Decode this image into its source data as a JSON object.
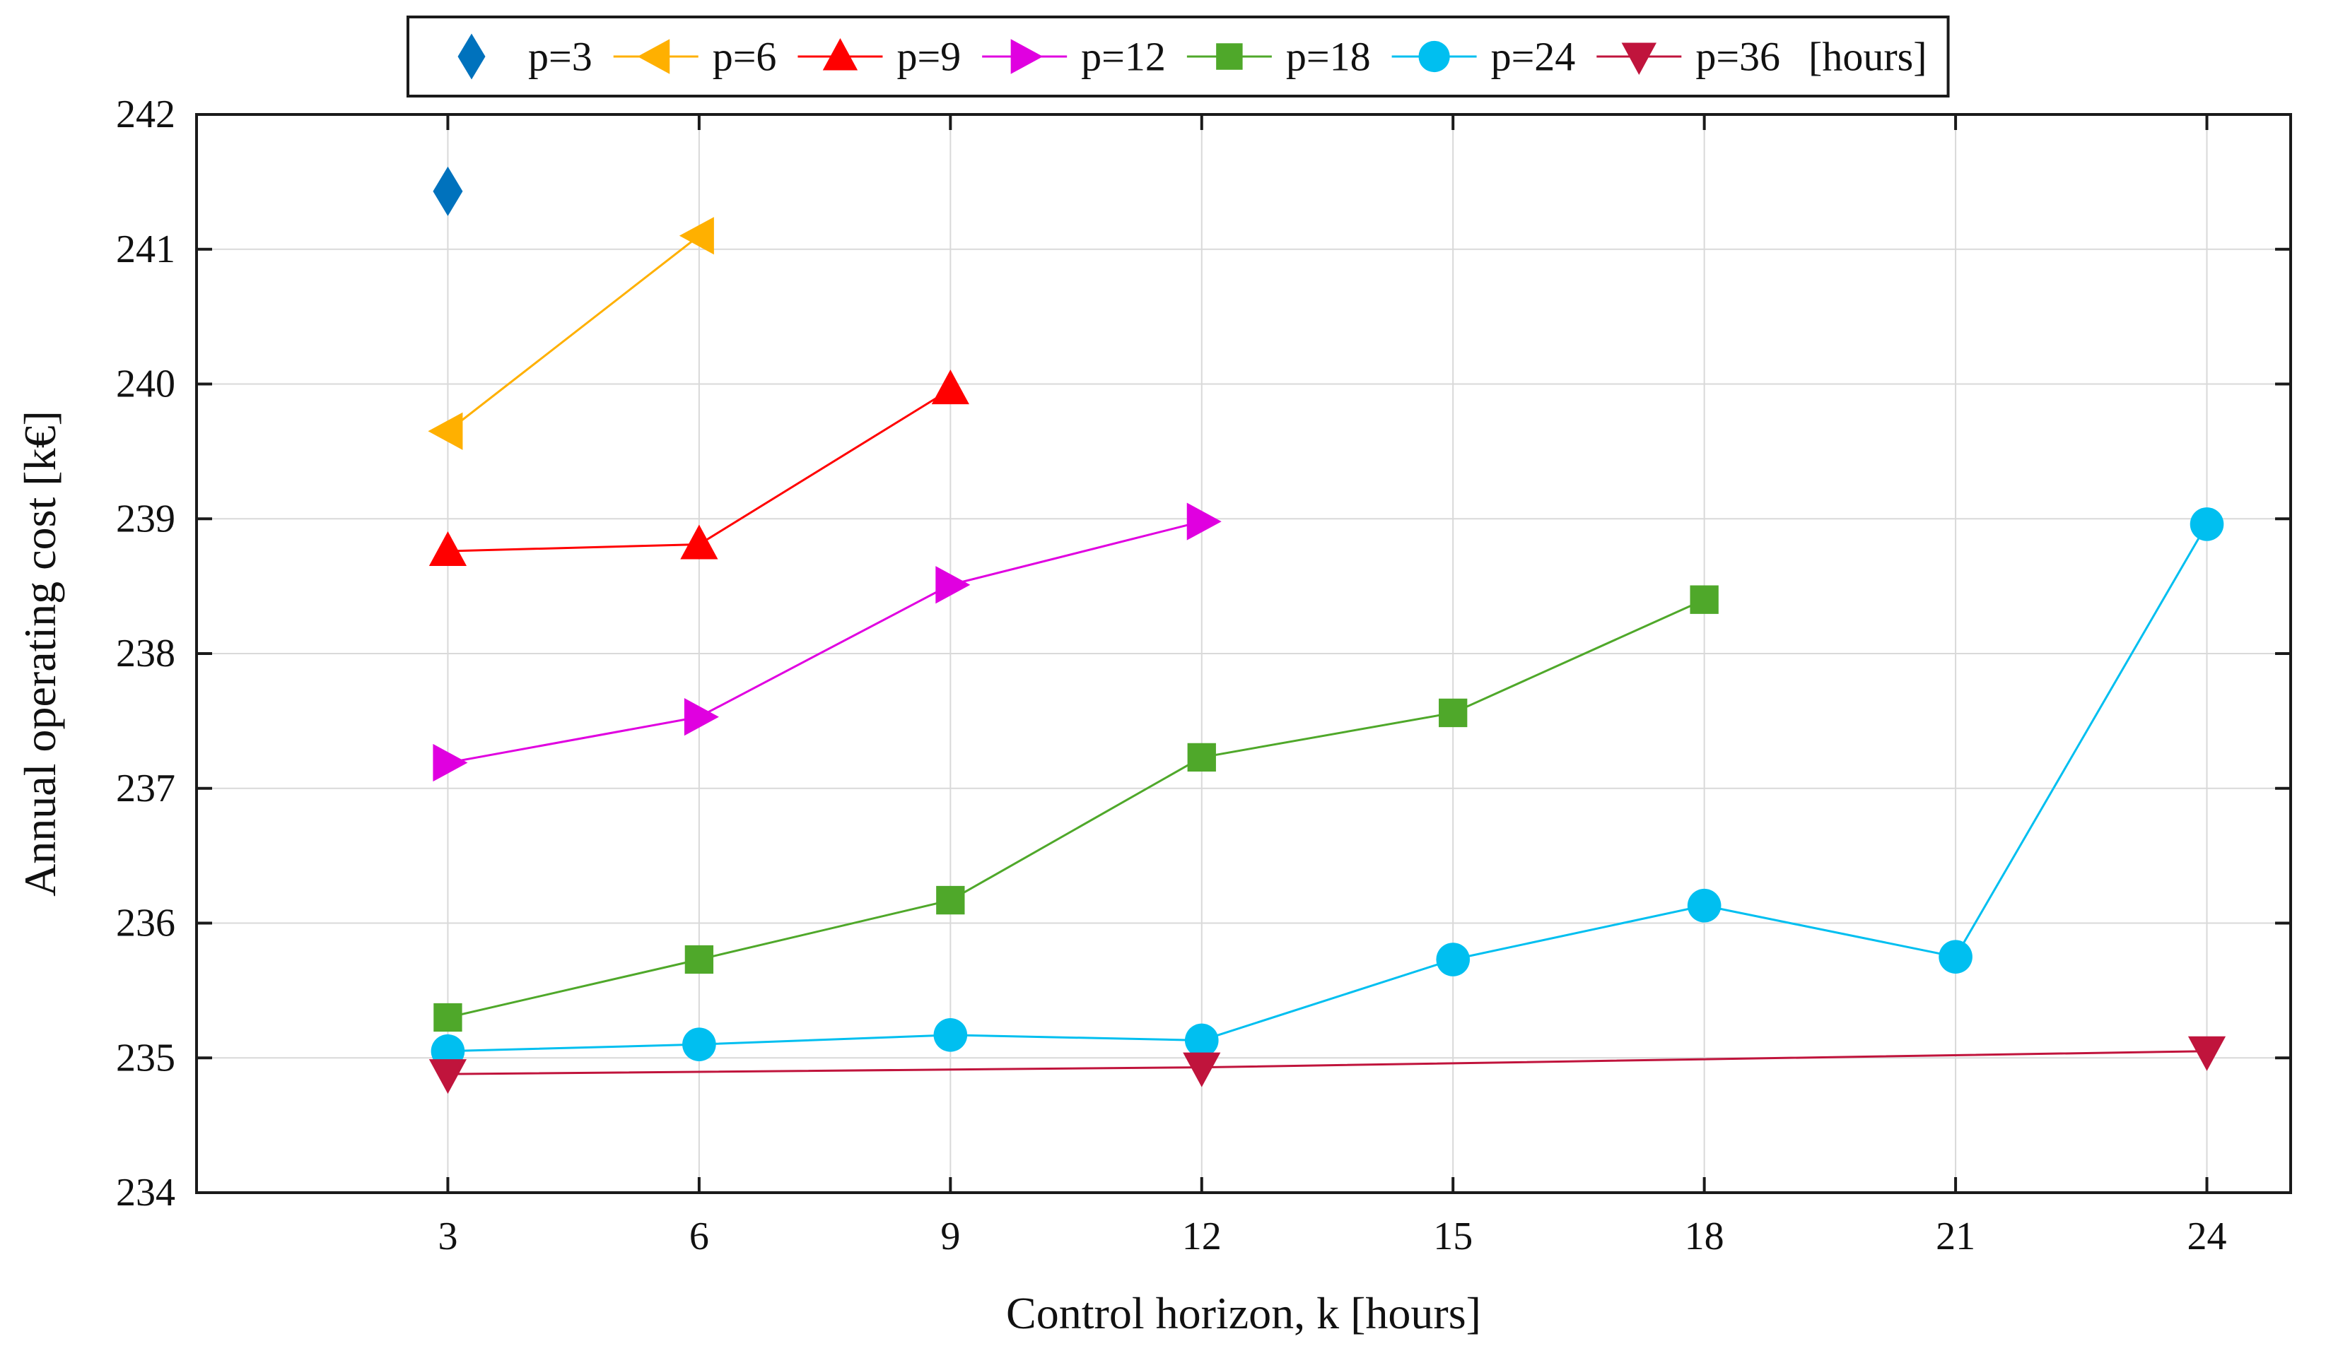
{
  "chart_data": {
    "type": "line",
    "title": "",
    "xlabel": "Control horizon, k [hours]",
    "ylabel": "Annual operating cost [k€]",
    "xlim": [
      0,
      25
    ],
    "ylim": [
      234,
      242
    ],
    "xticks": [
      3,
      6,
      9,
      12,
      15,
      18,
      21,
      24
    ],
    "yticks": [
      234,
      235,
      236,
      237,
      238,
      239,
      240,
      241,
      242
    ],
    "grid": true,
    "legend_position": "top",
    "legend_unit": "[hours]",
    "series": [
      {
        "name": "p=3",
        "color": "#0072BD",
        "marker": "diamond",
        "x": [
          3
        ],
        "y": [
          241.43
        ]
      },
      {
        "name": "p=6",
        "color": "#FFB000",
        "marker": "triangle-left",
        "x": [
          3,
          6
        ],
        "y": [
          239.65,
          241.1
        ]
      },
      {
        "name": "p=9",
        "color": "#FF0000",
        "marker": "triangle-up",
        "x": [
          3,
          6,
          9
        ],
        "y": [
          238.76,
          238.81,
          239.96
        ]
      },
      {
        "name": "p=12",
        "color": "#E000E0",
        "marker": "triangle-right",
        "x": [
          3,
          6,
          9,
          12
        ],
        "y": [
          237.19,
          237.53,
          238.51,
          238.98
        ]
      },
      {
        "name": "p=18",
        "color": "#4FA82A",
        "marker": "square",
        "x": [
          3,
          6,
          9,
          12,
          15,
          18
        ],
        "y": [
          235.3,
          235.73,
          236.17,
          237.23,
          237.56,
          238.4
        ]
      },
      {
        "name": "p=24",
        "color": "#00BFF0",
        "marker": "circle",
        "x": [
          3,
          6,
          9,
          12,
          15,
          18,
          21,
          24
        ],
        "y": [
          235.05,
          235.1,
          235.17,
          235.13,
          235.73,
          236.13,
          235.75,
          238.96
        ]
      },
      {
        "name": "p=36",
        "color": "#C0143C",
        "marker": "triangle-down",
        "x": [
          3,
          12,
          24
        ],
        "y": [
          234.88,
          234.93,
          235.05
        ]
      }
    ]
  }
}
